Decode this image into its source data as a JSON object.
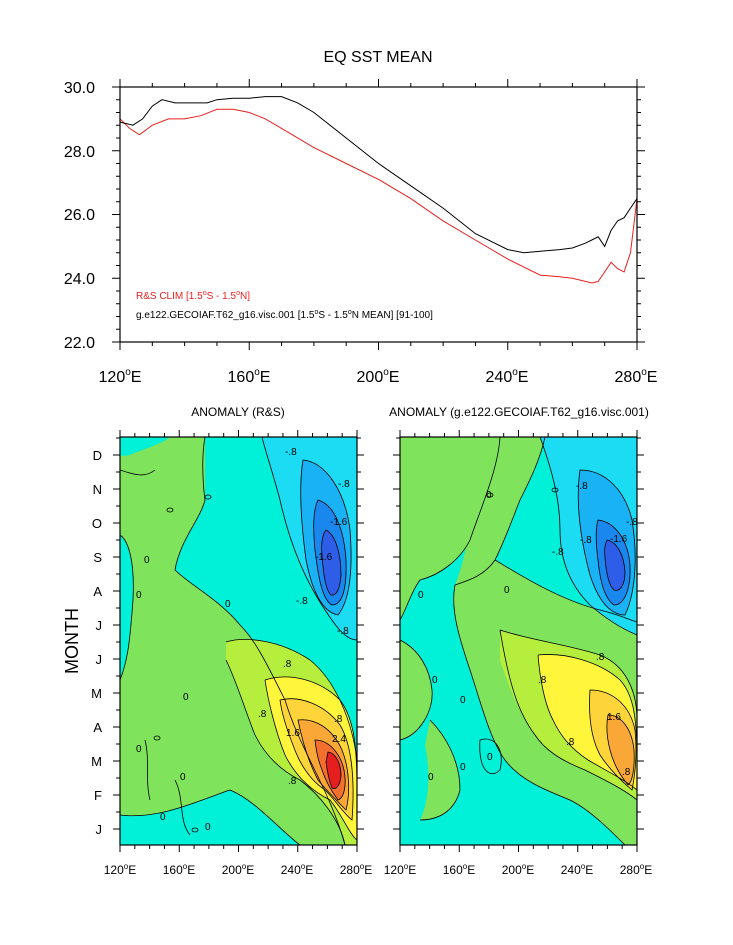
{
  "line_plot": {
    "title": "EQ SST MEAN",
    "legend": [
      {
        "label": "R&S CLIM [1.5",
        "label_sup1": "o",
        "label_mid": "S - 1.5",
        "label_sup2": "o",
        "label_end": "N]",
        "color": "#e8211f"
      },
      {
        "label": "g.e122.GECOIAF.T62_g16.visc.001 [1.5",
        "label_sup1": "o",
        "label_mid": "S - 1.5",
        "label_sup2": "o",
        "label_end": "N MEAN] [91-100]",
        "color": "#000000"
      }
    ],
    "y_ticks": [
      "22.0",
      "24.0",
      "26.0",
      "28.0",
      "30.0"
    ],
    "x_ticks": [
      {
        "num": "120",
        "deg": "o",
        "hem": "E"
      },
      {
        "num": "160",
        "deg": "o",
        "hem": "E"
      },
      {
        "num": "200",
        "deg": "o",
        "hem": "E"
      },
      {
        "num": "240",
        "deg": "o",
        "hem": "E"
      },
      {
        "num": "280",
        "deg": "o",
        "hem": "E"
      }
    ]
  },
  "contour_panels": {
    "y_axis_label": "MONTH",
    "month_ticks": [
      "J",
      "F",
      "M",
      "A",
      "M",
      "J",
      "J",
      "A",
      "S",
      "O",
      "N",
      "D"
    ],
    "left_title": "ANOMALY (R&S)",
    "right_title": "ANOMALY (g.e122.GECOIAF.T62_g16.visc.001)",
    "x_ticks": [
      {
        "num": "120",
        "deg": "o",
        "hem": "E"
      },
      {
        "num": "160",
        "deg": "o",
        "hem": "E"
      },
      {
        "num": "200",
        "deg": "o",
        "hem": "E"
      },
      {
        "num": "240",
        "deg": "o",
        "hem": "E"
      },
      {
        "num": "280",
        "deg": "o",
        "hem": "E"
      }
    ],
    "left_contour_labels": [
      "-.8",
      "-.8",
      "-1.6",
      "-1.6",
      "-.8",
      "-.8",
      "0",
      "0",
      "0",
      "0",
      ".8",
      ".8",
      "1.6",
      ".8",
      "2.4",
      ".8",
      "0",
      "0",
      "0",
      "0"
    ],
    "right_contour_labels": [
      "-.8",
      "-.8",
      "-1.6",
      "-.8",
      "-.8",
      "0",
      "0",
      "0",
      "0",
      "0",
      ".8",
      ".8",
      ".8",
      "1.6",
      ".8",
      "0",
      "0",
      "0"
    ]
  },
  "chart_data": [
    {
      "type": "line",
      "title": "EQ SST MEAN",
      "xlabel": "",
      "ylabel": "",
      "xlim": [
        120,
        280
      ],
      "ylim": [
        22,
        30
      ],
      "grid": false,
      "legend_position": "bottom-left",
      "series": [
        {
          "name": "R&S CLIM [1.5oS - 1.5oN]",
          "color": "#e8211f",
          "x": [
            120,
            123,
            126,
            130,
            135,
            140,
            145,
            150,
            155,
            160,
            165,
            170,
            180,
            190,
            200,
            210,
            220,
            230,
            240,
            250,
            256,
            260,
            264,
            266,
            268,
            270,
            272,
            274,
            276,
            278,
            280
          ],
          "y": [
            29.0,
            28.7,
            28.5,
            28.8,
            29.0,
            29.0,
            29.1,
            29.3,
            29.3,
            29.2,
            29.0,
            28.7,
            28.1,
            27.6,
            27.1,
            26.5,
            25.8,
            25.2,
            24.6,
            24.1,
            24.05,
            24.0,
            23.9,
            23.85,
            23.9,
            24.2,
            24.5,
            24.3,
            24.2,
            24.8,
            26.5
          ]
        },
        {
          "name": "g.e122.GECOIAF.T62_g16.visc.001 [1.5oS - 1.5oN MEAN] [91-100]",
          "color": "#000000",
          "x": [
            120,
            124,
            127,
            130,
            133,
            137,
            142,
            147,
            150,
            155,
            160,
            165,
            170,
            175,
            180,
            190,
            200,
            210,
            220,
            230,
            240,
            245,
            250,
            256,
            260,
            264,
            266,
            268,
            270,
            272,
            274,
            276,
            278,
            280
          ],
          "y": [
            28.9,
            28.8,
            29.0,
            29.4,
            29.6,
            29.5,
            29.5,
            29.5,
            29.6,
            29.65,
            29.65,
            29.7,
            29.7,
            29.5,
            29.2,
            28.4,
            27.6,
            26.9,
            26.2,
            25.4,
            24.9,
            24.8,
            24.85,
            24.9,
            24.95,
            25.1,
            25.2,
            25.3,
            25.0,
            25.5,
            25.8,
            25.9,
            26.2,
            26.5
          ]
        }
      ]
    },
    {
      "type": "heatmap",
      "title": "ANOMALY (R&S)",
      "ylabel": "MONTH",
      "x_range": [
        120,
        280
      ],
      "y_categories": [
        "J",
        "F",
        "M",
        "A",
        "M",
        "J",
        "J",
        "A",
        "S",
        "O",
        "N",
        "D"
      ],
      "contour_interval": 0.4,
      "contour_labels": [
        -1.6,
        -0.8,
        0,
        0.8,
        1.6,
        2.4
      ],
      "features": [
        {
          "kind": "warm_max",
          "lon": 263,
          "month": "M",
          "value": 2.8
        },
        {
          "kind": "cold_min",
          "lon": 265,
          "month": "S",
          "value": -2.0
        }
      ]
    },
    {
      "type": "heatmap",
      "title": "ANOMALY (g.e122.GECOIAF.T62_g16.visc.001)",
      "ylabel": "MONTH",
      "x_range": [
        120,
        280
      ],
      "y_categories": [
        "J",
        "F",
        "M",
        "A",
        "M",
        "J",
        "J",
        "A",
        "S",
        "O",
        "N",
        "D"
      ],
      "contour_interval": 0.4,
      "contour_labels": [
        -1.6,
        -0.8,
        0,
        0.8,
        1.6
      ],
      "features": [
        {
          "kind": "warm_max",
          "lon": 265,
          "month": "A",
          "value": 1.8
        },
        {
          "kind": "cold_min",
          "lon": 266,
          "month": "S",
          "value": -1.8
        }
      ]
    }
  ]
}
